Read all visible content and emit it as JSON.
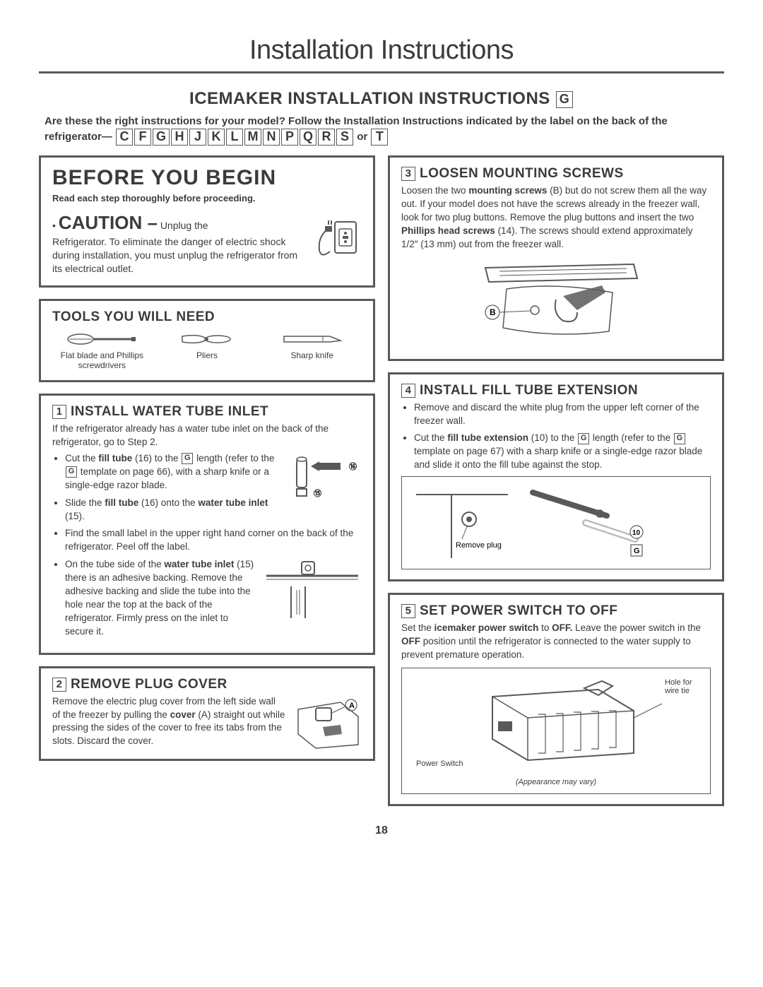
{
  "page_title": "Installation Instructions",
  "section_title": "ICEMAKER INSTALLATION INSTRUCTIONS",
  "title_letter": "G",
  "intro_line1": "Are these the right instructions for your model? Follow the Installation Instructions indicated by the label on the back of the refrigerator—",
  "model_letters": [
    "C",
    "F",
    "G",
    "H",
    "J",
    "K",
    "L",
    "M",
    "N",
    "P",
    "Q",
    "R",
    "S"
  ],
  "intro_or": "or",
  "intro_last_letter": "T",
  "before": {
    "heading": "BEFORE YOU BEGIN",
    "read": "Read each step thoroughly before proceeding.",
    "caution_word": "CAUTION –",
    "caution_lead": "Unplug the",
    "caution_body": "Refrigerator. To eliminate the danger of electric shock during installation, you must unplug the refrigerator from its electrical outlet."
  },
  "tools": {
    "heading": "TOOLS YOU WILL NEED",
    "items": [
      {
        "label": "Flat blade and Phillips screwdrivers"
      },
      {
        "label": "Pliers"
      },
      {
        "label": "Sharp knife"
      }
    ]
  },
  "step1": {
    "num": "1",
    "title": "INSTALL WATER TUBE INLET",
    "lead": "If the refrigerator already has a water tube inlet on the back of the refrigerator, go to Step 2.",
    "b1a": "Cut the ",
    "b1_bold1": "fill tube",
    "b1b": " (16) to the ",
    "b1_gbox": "G",
    "b1c": " length (refer to the ",
    "b1_gbox2": "G",
    "b1d": " template on page 66), with a sharp knife or a single-edge razor blade.",
    "b2a": "Slide the ",
    "b2_bold1": "fill tube",
    "b2b": " (16) onto the ",
    "b2_bold2": "water tube inlet",
    "b2c": " (15).",
    "b3": "Find the small label in the upper right hand corner on the back of the refrigerator. Peel off the label.",
    "b4a": "On the tube side of the ",
    "b4_bold": "water tube inlet",
    "b4b": " (15) there is an adhesive backing. Remove the adhesive backing and slide the tube into the hole near the top at the back of the refrigerator. Firmly press on the inlet to secure it.",
    "fig1_n16": "16",
    "fig1_n15": "15"
  },
  "step2": {
    "num": "2",
    "title": "REMOVE PLUG COVER",
    "body_a": "Remove the electric plug cover from the left side wall of the freezer by pulling the ",
    "body_bold": "cover",
    "body_b": " (A) straight out while pressing the sides of the cover to free its tabs from the slots. Discard the cover.",
    "fig_a": "A"
  },
  "step3": {
    "num": "3",
    "title": "LOOSEN MOUNTING SCREWS",
    "body_a": "Loosen the two ",
    "body_bold1": "mounting screws",
    "body_b": " (B) but do not screw them all the way out. If your model does not have the screws already in the freezer wall, look for two plug buttons. Remove the plug buttons and insert the two ",
    "body_bold2": "Phillips head screws",
    "body_c": " (14). The screws should extend approximately 1/2″ (13 mm) out from the freezer wall.",
    "fig_b": "B"
  },
  "step4": {
    "num": "4",
    "title": "INSTALL FILL TUBE EXTENSION",
    "b1": "Remove and discard the white plug from the upper left corner of the freezer wall.",
    "b2a": "Cut the ",
    "b2_bold": "fill tube extension",
    "b2b": " (10) to the ",
    "b2_g1": "G",
    "b2c": " length (refer to the ",
    "b2_g2": "G",
    "b2d": " template on page 67) with a sharp knife or a single-edge razor blade and slide it onto the fill tube against the stop.",
    "fig_remove": "Remove plug",
    "fig_n10": "10",
    "fig_g": "G"
  },
  "step5": {
    "num": "5",
    "title": "SET POWER SWITCH TO OFF",
    "body_a": "Set the ",
    "body_bold1": "icemaker power switch",
    "body_b": " to ",
    "body_bold2": "OFF.",
    "body_c": " Leave the power switch in the ",
    "body_bold3": "OFF",
    "body_d": " position until the refrigerator is connected to the water supply to prevent premature operation.",
    "fig_power": "Power Switch",
    "fig_hole": "Hole for wire tie",
    "fig_vary": "(Appearance may vary)"
  },
  "page_number": "18"
}
